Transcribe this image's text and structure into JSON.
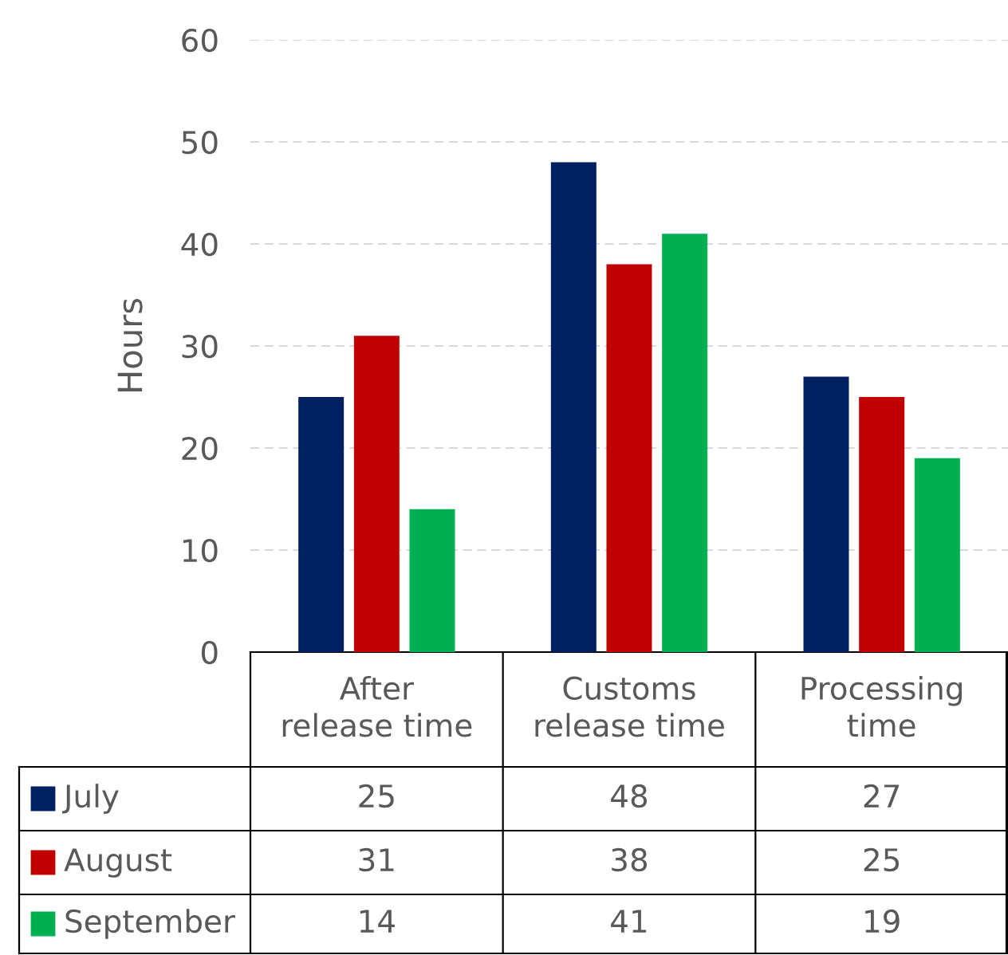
{
  "chart_data": {
    "type": "bar",
    "ylabel": "Hours",
    "categories": [
      "After\nrelease time",
      "Customs\nrelease time",
      "Processing\ntime"
    ],
    "series": [
      {
        "name": "July",
        "color": "#002060",
        "values": [
          25,
          48,
          27
        ]
      },
      {
        "name": "August",
        "color": "#c00000",
        "values": [
          31,
          38,
          25
        ]
      },
      {
        "name": "September",
        "color": "#00b050",
        "values": [
          14,
          41,
          19
        ]
      }
    ],
    "ylim": [
      0,
      60
    ],
    "yticks": [
      0,
      10,
      20,
      30,
      40,
      50,
      60
    ],
    "grid": "y",
    "data_labels": true,
    "legend": "bottom"
  }
}
